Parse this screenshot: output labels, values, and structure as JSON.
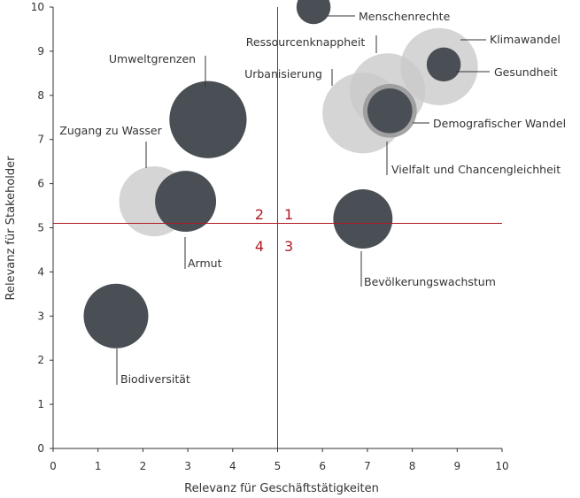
{
  "chart_data": {
    "type": "bubble",
    "xlabel": "Relevanz für Geschäftstätigkeiten",
    "ylabel": "Relevanz für Stakeholder",
    "xlim": [
      0,
      10
    ],
    "ylim": [
      0,
      10
    ],
    "x_ticks": [
      "0",
      "1",
      "2",
      "3",
      "4",
      "5",
      "6",
      "7",
      "8",
      "9",
      "10"
    ],
    "y_ticks": [
      "0",
      "1",
      "2",
      "3",
      "4",
      "5",
      "6",
      "7",
      "8",
      "9",
      "10"
    ],
    "reference_lines": {
      "x": 5,
      "y": 5.1
    },
    "quadrants": [
      "2",
      "1",
      "4",
      "3"
    ],
    "colors": {
      "dark": "#4a4f55",
      "light": "#c9c9c9",
      "reference_line": "#b01a24",
      "axis": "#333333"
    },
    "points": [
      {
        "label": "Zugang zu Wasser",
        "x": 2.25,
        "y": 5.6,
        "size": 0.78,
        "style": "light"
      },
      {
        "label": "Armut",
        "x": 2.95,
        "y": 5.6,
        "size": 0.68,
        "style": "dark"
      },
      {
        "label": "Umweltgrenzen",
        "x": 3.45,
        "y": 7.45,
        "size": 0.86,
        "style": "dark"
      },
      {
        "label": "Menschenrechte",
        "x": 5.8,
        "y": 10.0,
        "size": 0.38,
        "style": "dark"
      },
      {
        "label": "Urbanisierung",
        "x": 6.9,
        "y": 7.6,
        "size": 0.9,
        "style": "light"
      },
      {
        "label": "Ressourcenknappheit",
        "x": 7.45,
        "y": 8.1,
        "size": 0.84,
        "style": "light"
      },
      {
        "label": "Klimawandel",
        "x": 8.6,
        "y": 8.65,
        "size": 0.86,
        "style": "light"
      },
      {
        "label": "Gesundheit",
        "x": 8.7,
        "y": 8.7,
        "size": 0.38,
        "style": "dark"
      },
      {
        "label": "Demografischer Wandel",
        "x": 7.5,
        "y": 7.65,
        "size": 0.6,
        "style": "midgrey"
      },
      {
        "label": "Vielfalt und Chancengleichheit",
        "x": 7.5,
        "y": 7.65,
        "size": 0.5,
        "style": "dark"
      },
      {
        "label": "Bevölkerungswachstum",
        "x": 6.9,
        "y": 5.2,
        "size": 0.66,
        "style": "dark"
      },
      {
        "label": "Biodiversität",
        "x": 1.4,
        "y": 3.0,
        "size": 0.72,
        "style": "dark"
      }
    ]
  }
}
